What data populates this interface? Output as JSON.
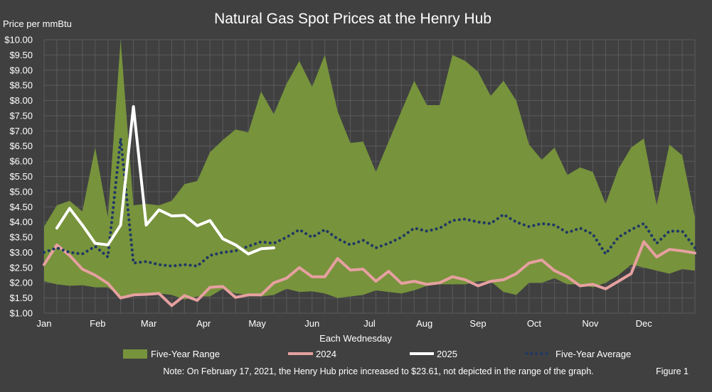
{
  "chart_data": {
    "type": "area",
    "title": "Natural Gas Spot Prices at the Henry Hub",
    "ylabel": "Price per mmBtu",
    "xlabel": "Each Wednesday",
    "ylim": [
      1.0,
      10.0
    ],
    "ytick_step": 0.5,
    "y_tick_labels": [
      "$1.00",
      "$1.50",
      "$2.00",
      "$2.50",
      "$3.00",
      "$3.50",
      "$4.00",
      "$4.50",
      "$5.00",
      "$5.50",
      "$6.00",
      "$6.50",
      "$7.00",
      "$7.50",
      "$8.00",
      "$8.50",
      "$9.00",
      "$9.50",
      "$10.00"
    ],
    "x_tick_labels": [
      "Jan",
      "Feb",
      "Mar",
      "Apr",
      "May",
      "Jun",
      "Jul",
      "Aug",
      "Sep",
      "Oct",
      "Nov",
      "Dec"
    ],
    "x_tick_weeks": [
      0,
      4.2,
      8.2,
      12.5,
      16.7,
      21,
      25.5,
      29.8,
      34,
      38.4,
      42.8,
      47
    ],
    "weeks": 52,
    "grid": true,
    "legend_position": "bottom",
    "note": "Note: On February 17, 2021,  the Henry Hub price increased to $23.61,  not depicted in the range of the graph.",
    "figure_label": "Figure 1",
    "colors": {
      "background": "#404040",
      "range": "#77933C",
      "s2024": "#E6A0A0",
      "s2025": "#FFFFFF",
      "average": "#1F3864",
      "grid": "#5A5A5A",
      "text": "#FFFFFF"
    },
    "series": [
      {
        "name": "Five-Year Range",
        "kind": "range",
        "low": [
          2.05,
          1.95,
          1.9,
          1.92,
          1.85,
          1.85,
          1.55,
          1.6,
          1.62,
          1.65,
          1.6,
          1.45,
          1.55,
          1.55,
          1.8,
          1.65,
          1.6,
          1.55,
          1.6,
          1.8,
          1.7,
          1.72,
          1.65,
          1.5,
          1.55,
          1.6,
          1.75,
          1.7,
          1.65,
          1.75,
          1.9,
          1.95,
          1.95,
          1.95,
          2.05,
          2.05,
          1.7,
          1.6,
          2.0,
          2.0,
          2.15,
          1.95,
          1.95,
          1.85,
          2.0,
          2.25,
          2.6,
          2.5,
          2.4,
          2.3,
          2.45,
          2.4
        ],
        "high": [
          3.85,
          4.55,
          4.7,
          4.35,
          6.45,
          4.15,
          10.0,
          4.55,
          4.6,
          4.55,
          4.7,
          5.25,
          5.35,
          6.3,
          6.7,
          7.05,
          6.95,
          8.3,
          7.55,
          8.55,
          9.3,
          8.45,
          9.5,
          7.65,
          6.6,
          6.65,
          5.65,
          6.65,
          7.65,
          8.65,
          7.85,
          7.85,
          9.5,
          9.3,
          8.95,
          8.15,
          8.65,
          8.0,
          6.55,
          6.05,
          6.45,
          5.55,
          5.8,
          5.65,
          4.6,
          5.75,
          6.45,
          6.75,
          4.55,
          6.55,
          6.2,
          4.15
        ]
      },
      {
        "name": "2024",
        "kind": "line",
        "values": [
          2.6,
          3.25,
          2.9,
          2.45,
          2.25,
          1.98,
          1.5,
          1.6,
          1.62,
          1.65,
          1.25,
          1.58,
          1.42,
          1.85,
          1.88,
          1.52,
          1.6,
          1.6,
          2.0,
          2.15,
          2.5,
          2.2,
          2.2,
          2.8,
          2.42,
          2.45,
          2.05,
          2.38,
          1.98,
          2.05,
          1.95,
          2.0,
          2.2,
          2.1,
          1.9,
          2.05,
          2.1,
          2.3,
          2.65,
          2.75,
          2.4,
          2.2,
          1.9,
          1.95,
          1.8,
          2.05,
          2.3,
          3.35,
          2.85,
          3.1,
          3.05,
          2.98
        ]
      },
      {
        "name": "2025",
        "kind": "line",
        "values": [
          null,
          3.8,
          4.45,
          3.9,
          3.3,
          3.25,
          3.9,
          7.8,
          3.9,
          4.4,
          4.2,
          4.22,
          3.88,
          4.05,
          3.45,
          3.25,
          2.95,
          3.12,
          3.15,
          null,
          null,
          null,
          null,
          null,
          null,
          null,
          null,
          null,
          null,
          null,
          null,
          null,
          null,
          null,
          null,
          null,
          null,
          null,
          null,
          null,
          null,
          null,
          null,
          null,
          null,
          null,
          null,
          null,
          null,
          null,
          null,
          null
        ]
      },
      {
        "name": "Five-Year Average",
        "kind": "dotted",
        "values": [
          3.0,
          3.15,
          3.0,
          2.95,
          3.2,
          2.85,
          6.75,
          2.65,
          2.7,
          2.6,
          2.55,
          2.6,
          2.55,
          2.9,
          3.0,
          3.05,
          3.2,
          3.35,
          3.3,
          3.5,
          3.75,
          3.5,
          3.75,
          3.45,
          3.25,
          3.4,
          3.15,
          3.3,
          3.5,
          3.8,
          3.7,
          3.8,
          4.05,
          4.1,
          4.0,
          3.95,
          4.25,
          4.0,
          3.85,
          3.95,
          3.9,
          3.65,
          3.8,
          3.6,
          2.95,
          3.5,
          3.75,
          3.95,
          3.3,
          3.7,
          3.7,
          3.15
        ]
      }
    ]
  }
}
